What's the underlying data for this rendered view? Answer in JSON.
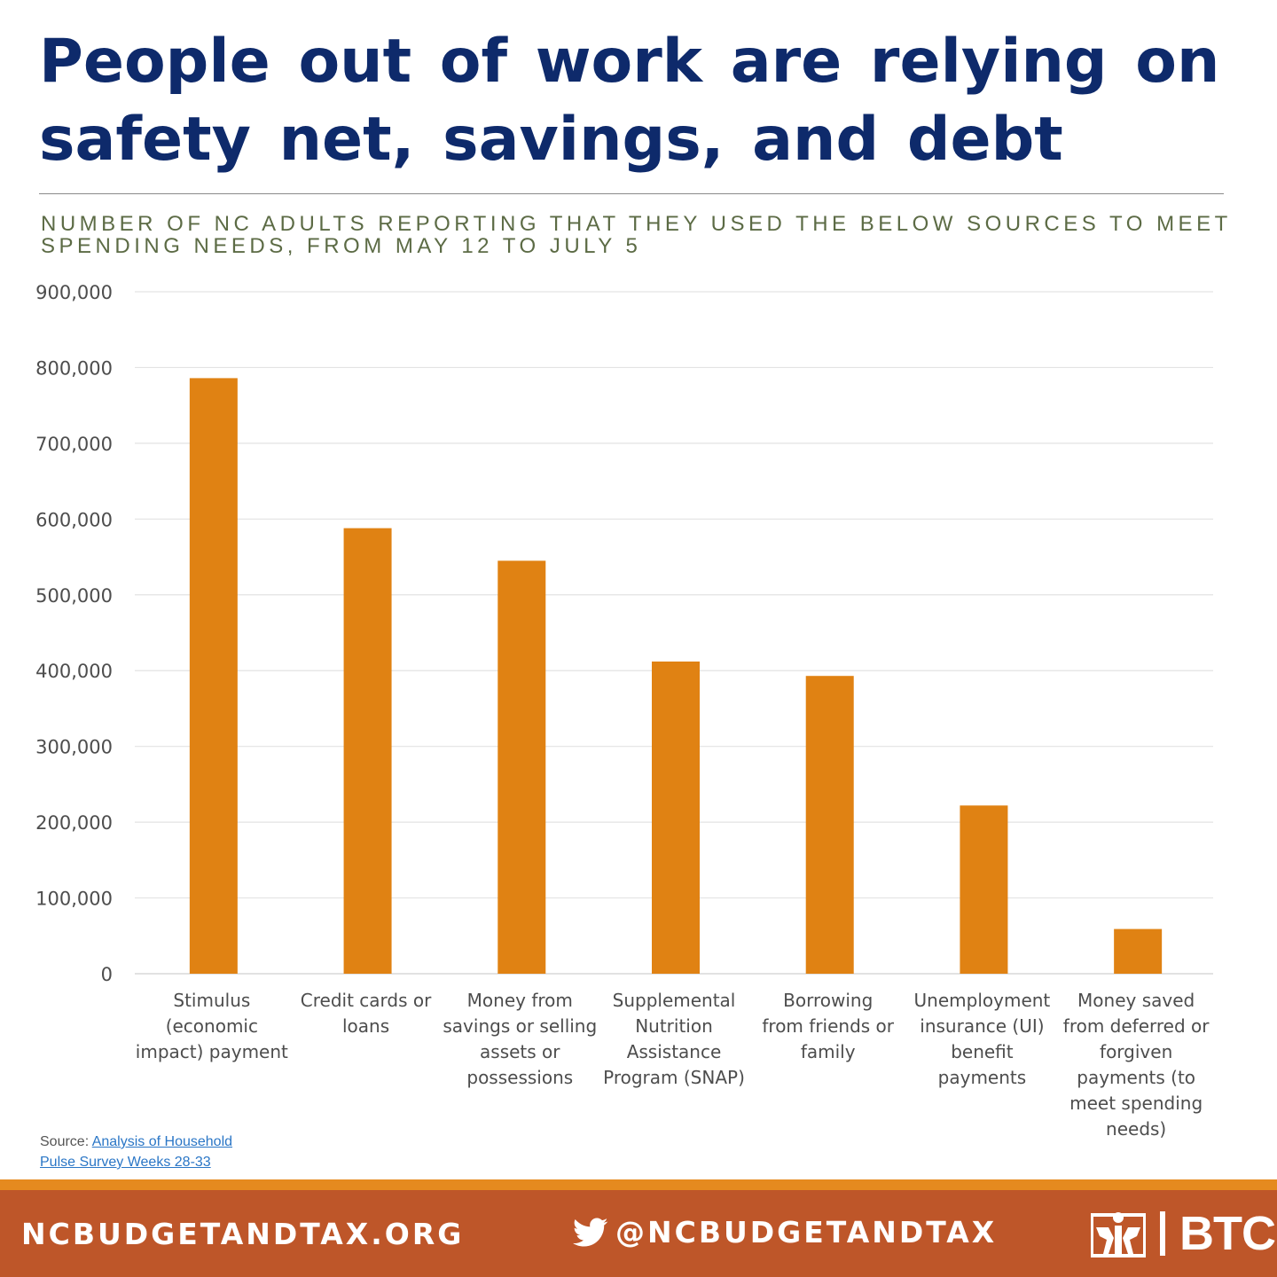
{
  "header": {
    "title": "People out of work are relying on safety net, savings, and debt",
    "subtitle": "NUMBER OF NC ADULTS REPORTING THAT THEY USED THE BELOW SOURCES TO MEET SPENDING NEEDS, FROM MAY 12 TO JULY 5"
  },
  "chart_data": {
    "type": "bar",
    "title": "",
    "xlabel": "",
    "ylabel": "",
    "categories": [
      "Stimulus (economic impact) payment",
      "Credit cards or loans",
      "Money from savings or selling assets or possessions",
      "Supplemental Nutrition Assistance Program (SNAP)",
      "Borrowing from friends or family",
      "Unemployment insurance (UI) benefit payments",
      "Money saved from deferred or forgiven payments (to meet spending needs)"
    ],
    "values": [
      786000,
      588000,
      545000,
      412000,
      393000,
      222000,
      59000
    ],
    "ylim": [
      0,
      900000
    ],
    "yticks": [
      0,
      100000,
      200000,
      300000,
      400000,
      500000,
      600000,
      700000,
      800000,
      900000
    ],
    "ytick_labels": [
      "0",
      "100,000",
      "200,000",
      "300,000",
      "400,000",
      "500,000",
      "600,000",
      "700,000",
      "800,000",
      "900,000"
    ],
    "grid": true,
    "legend": "none",
    "bar_color": "#e08213"
  },
  "x_labels": [
    [
      "Stimulus",
      "(economic",
      "impact) payment"
    ],
    [
      "Credit cards or",
      "loans"
    ],
    [
      "Money from",
      "savings or selling",
      "assets or",
      "possessions"
    ],
    [
      "Supplemental",
      "Nutrition",
      "Assistance",
      "Program (SNAP)"
    ],
    [
      "Borrowing",
      "from friends or",
      "family"
    ],
    [
      "Unemployment",
      "insurance (UI)",
      "benefit",
      "payments"
    ],
    [
      "Money saved",
      "from deferred or",
      "forgiven",
      "payments (to",
      "meet spending",
      "needs)"
    ]
  ],
  "source": {
    "prefix": "Source: ",
    "link_text": "Analysis of Household Pulse Survey Weeks 28-33"
  },
  "footer": {
    "website": "NCBUDGETANDTAX.ORG",
    "twitter_handle": "@NCBUDGETANDTAX",
    "logo_text": "BTC",
    "twitter_icon": "twitter-bird-icon",
    "logo_icon": "btc-figures-logo-icon",
    "colors": {
      "footer_bg": "#be5629",
      "footer_strip": "#e58a1f",
      "title": "#0e2a6b",
      "subtitle": "#5c6b45"
    }
  }
}
